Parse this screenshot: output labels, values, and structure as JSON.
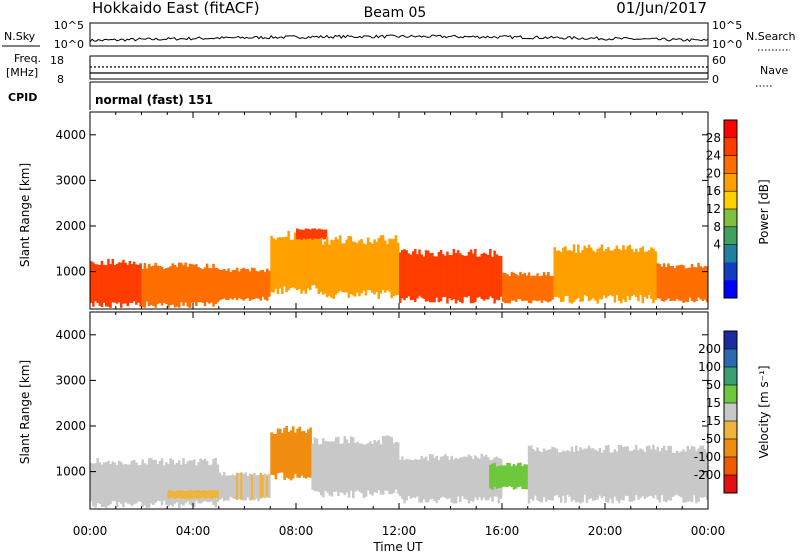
{
  "header": {
    "site": "Hokkaido East (fitACF)",
    "beam": "Beam 05",
    "date": "01/Jun/2017"
  },
  "nsky": {
    "left_label": "N.Sky",
    "right_label": "N.Search",
    "ticks": [
      "10^5",
      "10^0"
    ]
  },
  "freq": {
    "left_label_1": "Freq.",
    "left_label_2": "[MHz]",
    "left_ticks": [
      "18",
      "8"
    ],
    "right_label": "Nave",
    "right_ticks": [
      "60",
      "0"
    ]
  },
  "cpid": {
    "label": "CPID",
    "value": "normal (fast) 151"
  },
  "axes": {
    "ylabel": "Slant Range [km]",
    "yticks": [
      "4000",
      "3000",
      "2000",
      "1000"
    ],
    "xticks": [
      "00:00",
      "04:00",
      "08:00",
      "12:00",
      "16:00",
      "20:00",
      "00:00"
    ],
    "xlabel": "Time UT"
  },
  "colorbars": {
    "power": {
      "label": "Power [dB]",
      "ticks": [
        "28",
        "24",
        "20",
        "16",
        "12",
        "8",
        "4"
      ],
      "colors": [
        "#ff0000",
        "#ff3c00",
        "#ff6e00",
        "#ffa000",
        "#ffd000",
        "#80c040",
        "#40a060",
        "#2080a0",
        "#1040c0",
        "#0000ff"
      ]
    },
    "velocity": {
      "label": "Velocity [m s⁻¹]",
      "ticks": [
        "200",
        "100",
        "50",
        "15",
        "-15",
        "-50",
        "-100",
        "-200"
      ],
      "colors": [
        "#1a2ca0",
        "#2c6ab0",
        "#3aa070",
        "#6ec83c",
        "#c8c8c8",
        "#f0b43c",
        "#f08c10",
        "#f05a00",
        "#e01010"
      ]
    }
  },
  "chart_data": [
    {
      "type": "line",
      "title": "N.Sky",
      "x_range": [
        0,
        24
      ],
      "y_scale": "log",
      "y_ticks": [
        "10^0",
        "10^5"
      ]
    },
    {
      "type": "line",
      "title": "Freq. / Nave",
      "x_range": [
        0,
        24
      ],
      "series": [
        {
          "name": "Freq.",
          "values": [
            11,
            11
          ]
        },
        {
          "name": "Nave",
          "values": [
            28,
            28
          ]
        }
      ],
      "ylim_freq": [
        8,
        18
      ],
      "ylim_nave": [
        0,
        60
      ]
    },
    {
      "type": "heatmap",
      "title": "Power [dB]",
      "xlabel": "Time UT",
      "ylabel": "Slant Range [km]",
      "x_range": [
        0,
        24
      ],
      "y_range": [
        180,
        4500
      ],
      "z_range": [
        0,
        30
      ],
      "bands": [
        {
          "t0": 0.0,
          "t1": 2.0,
          "r_lo": 200,
          "r_hi": 1300,
          "z": 27
        },
        {
          "t0": 2.0,
          "t1": 5.0,
          "r_lo": 200,
          "r_hi": 1200,
          "z": 25
        },
        {
          "t0": 5.0,
          "t1": 7.0,
          "r_lo": 350,
          "r_hi": 1100,
          "z": 24
        },
        {
          "t0": 7.0,
          "t1": 9.0,
          "r_lo": 500,
          "r_hi": 1900,
          "z": 22
        },
        {
          "t0": 8.0,
          "t1": 9.2,
          "r_lo": 1700,
          "r_hi": 1950,
          "z": 28
        },
        {
          "t0": 9.0,
          "t1": 12.0,
          "r_lo": 400,
          "r_hi": 1800,
          "z": 20
        },
        {
          "t0": 12.0,
          "t1": 16.0,
          "r_lo": 300,
          "r_hi": 1500,
          "z": 27
        },
        {
          "t0": 16.0,
          "t1": 18.0,
          "r_lo": 300,
          "r_hi": 1000,
          "z": 24
        },
        {
          "t0": 18.0,
          "t1": 22.0,
          "r_lo": 300,
          "r_hi": 1600,
          "z": 21
        },
        {
          "t0": 22.0,
          "t1": 24.0,
          "r_lo": 300,
          "r_hi": 1200,
          "z": 24
        }
      ]
    },
    {
      "type": "heatmap",
      "title": "Velocity [m s⁻¹]",
      "xlabel": "Time UT",
      "ylabel": "Slant Range [km]",
      "x_range": [
        0,
        24
      ],
      "y_range": [
        180,
        4500
      ],
      "z_range": [
        -250,
        250
      ],
      "bands": [
        {
          "t0": 0.0,
          "t1": 5.0,
          "r_lo": 200,
          "r_hi": 1300,
          "z": 0
        },
        {
          "t0": 3.0,
          "t1": 5.0,
          "r_lo": 400,
          "r_hi": 600,
          "z": -40
        },
        {
          "t0": 5.0,
          "t1": 7.0,
          "r_lo": 350,
          "r_hi": 1000,
          "z": -10
        },
        {
          "t0": 7.0,
          "t1": 8.6,
          "r_lo": 800,
          "r_hi": 2000,
          "z": -90
        },
        {
          "t0": 8.6,
          "t1": 12.0,
          "r_lo": 400,
          "r_hi": 1800,
          "z": 0
        },
        {
          "t0": 12.0,
          "t1": 16.0,
          "r_lo": 300,
          "r_hi": 1400,
          "z": 5
        },
        {
          "t0": 15.5,
          "t1": 17.0,
          "r_lo": 600,
          "r_hi": 1200,
          "z": 30
        },
        {
          "t0": 17.0,
          "t1": 24.0,
          "r_lo": 300,
          "r_hi": 1600,
          "z": 0
        }
      ]
    }
  ]
}
